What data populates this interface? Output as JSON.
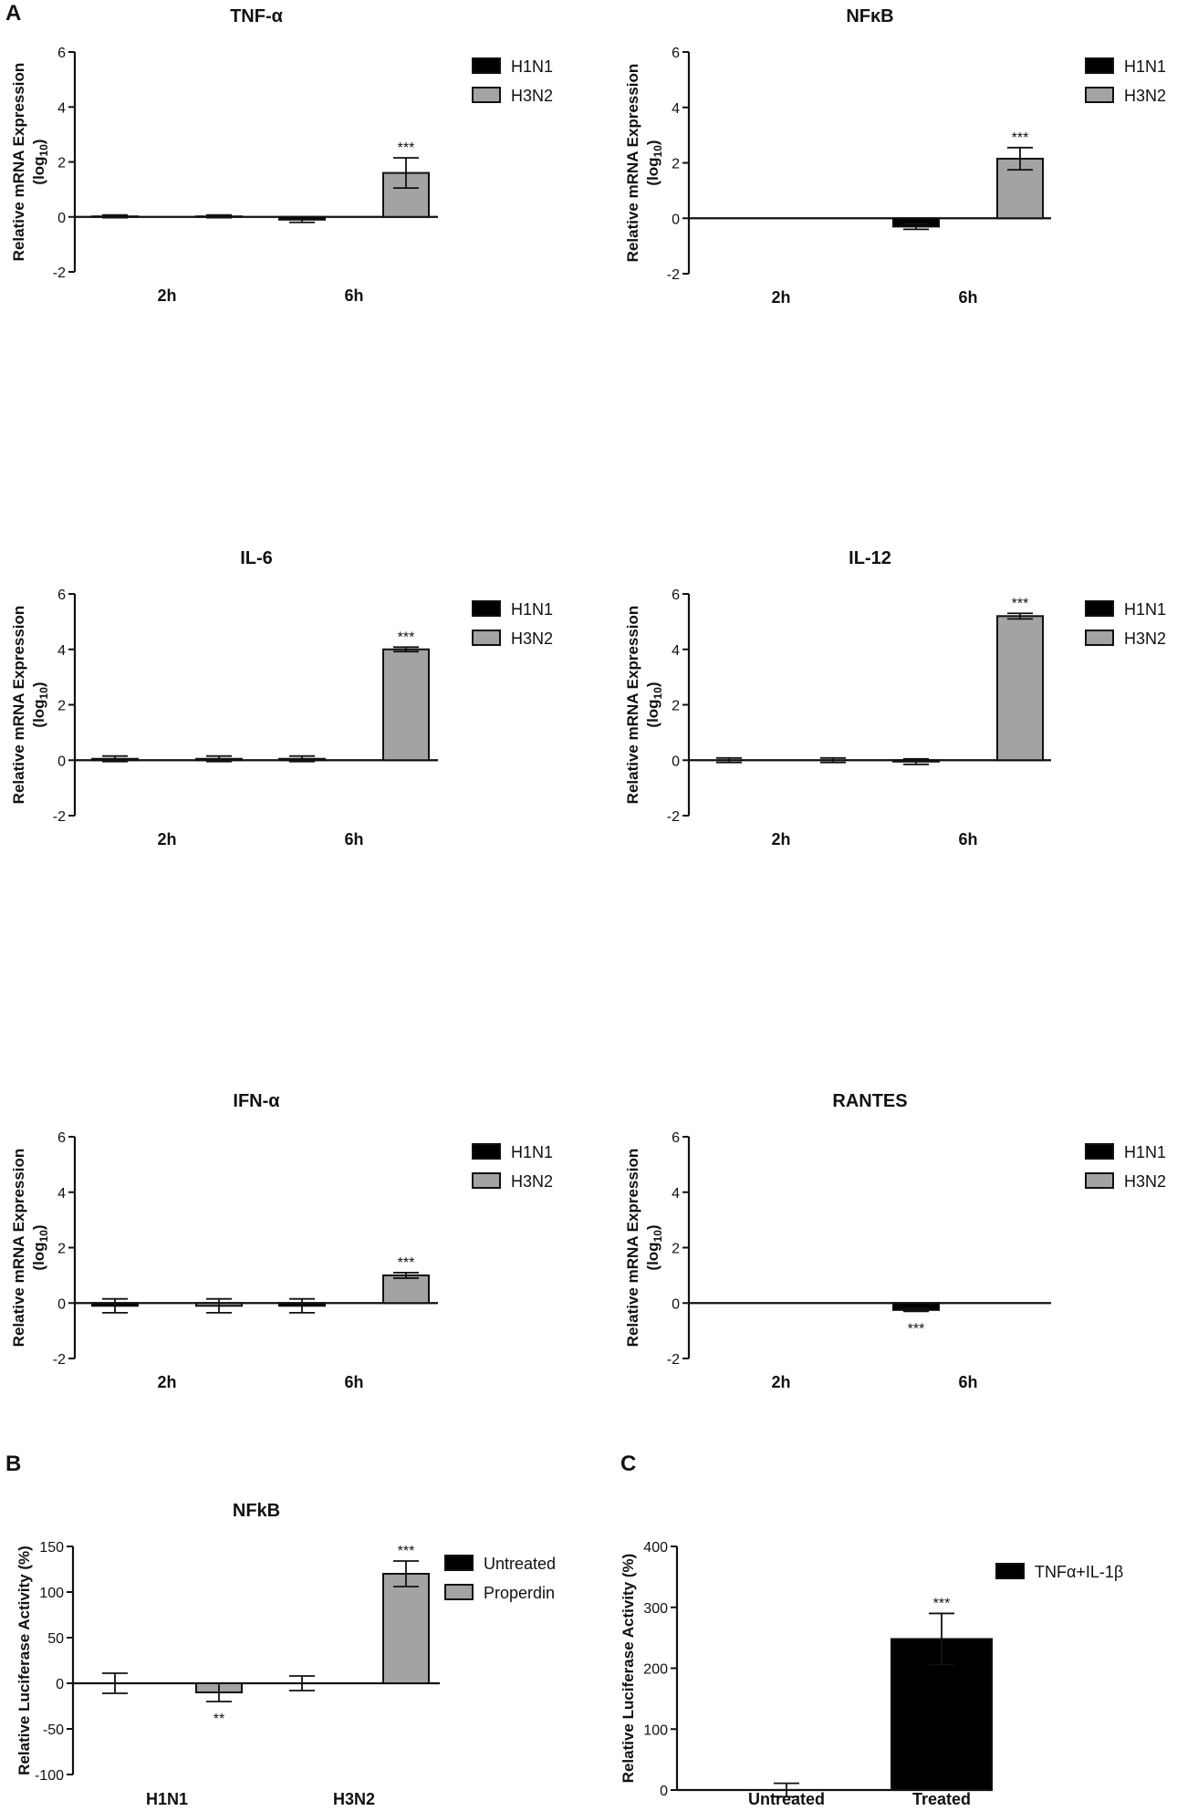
{
  "figure": {
    "panel_labels": [
      "A",
      "B",
      "C"
    ]
  },
  "chart_data": [
    {
      "type": "bar",
      "title": "TNF-α",
      "ylabel": [
        "Relative mRNA Expression",
        "(log",
        "10",
        ")"
      ],
      "ylim": [
        -2,
        6
      ],
      "yticks": [
        -2,
        0,
        2,
        4,
        6
      ],
      "categories": [
        "2h",
        "6h"
      ],
      "series": [
        {
          "name": "H1N1",
          "color": "#000000",
          "values": [
            0.02,
            -0.1
          ],
          "errors": [
            0.05,
            0.1
          ]
        },
        {
          "name": "H3N2",
          "color": "#a3a3a3",
          "values": [
            0.02,
            1.6
          ],
          "errors": [
            0.05,
            0.55
          ]
        }
      ],
      "annotations": [
        {
          "category": "6h",
          "series": "H3N2",
          "text": "***"
        }
      ]
    },
    {
      "type": "bar",
      "title": "NFκB",
      "ylabel": [
        "Relative mRNA Expression",
        "(log",
        "10",
        ")"
      ],
      "ylim": [
        -2,
        6
      ],
      "yticks": [
        -2,
        0,
        2,
        4,
        6
      ],
      "categories": [
        "2h",
        "6h"
      ],
      "series": [
        {
          "name": "H1N1",
          "color": "#000000",
          "values": [
            0,
            -0.3
          ],
          "errors": [
            0,
            0.1
          ]
        },
        {
          "name": "H3N2",
          "color": "#a3a3a3",
          "values": [
            0,
            2.15
          ],
          "errors": [
            0,
            0.4
          ]
        }
      ],
      "annotations": [
        {
          "category": "6h",
          "series": "H3N2",
          "text": "***"
        }
      ]
    },
    {
      "type": "bar",
      "title": "IL-6",
      "ylabel": [
        "Relative mRNA Expression",
        "(log",
        "10",
        ")"
      ],
      "ylim": [
        -2,
        6
      ],
      "yticks": [
        -2,
        0,
        2,
        4,
        6
      ],
      "categories": [
        "2h",
        "6h"
      ],
      "series": [
        {
          "name": "H1N1",
          "color": "#000000",
          "values": [
            0.05,
            0.05
          ],
          "errors": [
            0.1,
            0.1
          ]
        },
        {
          "name": "H3N2",
          "color": "#a3a3a3",
          "values": [
            0.05,
            4.0
          ],
          "errors": [
            0.1,
            0.08
          ]
        }
      ],
      "annotations": [
        {
          "category": "6h",
          "series": "H3N2",
          "text": "***"
        }
      ]
    },
    {
      "type": "bar",
      "title": "IL-12",
      "ylabel": [
        "Relative mRNA Expression",
        "(log",
        "10",
        ")"
      ],
      "ylim": [
        -2,
        6
      ],
      "yticks": [
        -2,
        0,
        2,
        4,
        6
      ],
      "categories": [
        "2h",
        "6h"
      ],
      "series": [
        {
          "name": "H1N1",
          "color": "#000000",
          "values": [
            0,
            -0.05
          ],
          "errors": [
            0.08,
            0.1
          ]
        },
        {
          "name": "H3N2",
          "color": "#a3a3a3",
          "values": [
            0,
            5.2
          ],
          "errors": [
            0.08,
            0.1
          ]
        }
      ],
      "annotations": [
        {
          "category": "6h",
          "series": "H3N2",
          "text": "***"
        }
      ]
    },
    {
      "type": "bar",
      "title": "IFN-α",
      "ylabel": [
        "Relative mRNA Expression",
        "(log",
        "10",
        ")"
      ],
      "ylim": [
        -2,
        6
      ],
      "yticks": [
        -2,
        0,
        2,
        4,
        6
      ],
      "categories": [
        "2h",
        "6h"
      ],
      "series": [
        {
          "name": "H1N1",
          "color": "#000000",
          "values": [
            -0.1,
            -0.1
          ],
          "errors": [
            0.25,
            0.25
          ]
        },
        {
          "name": "H3N2",
          "color": "#a3a3a3",
          "values": [
            -0.1,
            1.0
          ],
          "errors": [
            0.25,
            0.1
          ]
        }
      ],
      "annotations": [
        {
          "category": "6h",
          "series": "H3N2",
          "text": "***"
        }
      ]
    },
    {
      "type": "bar",
      "title": "RANTES",
      "ylabel": [
        "Relative mRNA Expression",
        "(log",
        "10",
        ")"
      ],
      "ylim": [
        -2,
        6
      ],
      "yticks": [
        -2,
        0,
        2,
        4,
        6
      ],
      "categories": [
        "2h",
        "6h"
      ],
      "series": [
        {
          "name": "H1N1",
          "color": "#000000",
          "values": [
            0,
            -0.25
          ],
          "errors": [
            0,
            0.05
          ]
        },
        {
          "name": "H3N2",
          "color": "#a3a3a3",
          "values": [
            0,
            0
          ],
          "errors": [
            0,
            0
          ]
        }
      ],
      "annotations": [
        {
          "category": "6h",
          "series": "H1N1",
          "text": "***",
          "position": "below"
        }
      ]
    },
    {
      "type": "bar",
      "title": "NFkB",
      "ylabel": [
        "Relative Luciferase Activity (%)"
      ],
      "ylim": [
        -100,
        150
      ],
      "yticks": [
        -100,
        -50,
        0,
        50,
        100,
        150
      ],
      "categories": [
        "H1N1",
        "H3N2"
      ],
      "series": [
        {
          "name": "Untreated",
          "color": "#000000",
          "values": [
            0,
            0
          ],
          "errors": [
            11,
            8
          ]
        },
        {
          "name": "Properdin",
          "color": "#a3a3a3",
          "values": [
            -10,
            120
          ],
          "errors": [
            10,
            14
          ]
        }
      ],
      "annotations": [
        {
          "category": "H1N1",
          "series": "Properdin",
          "text": "**",
          "position": "below"
        },
        {
          "category": "H3N2",
          "series": "Properdin",
          "text": "***"
        }
      ]
    },
    {
      "type": "bar",
      "title": "",
      "ylabel": [
        "Relative Luciferase Activity (%)"
      ],
      "ylim": [
        0,
        400
      ],
      "yticks": [
        0,
        100,
        200,
        300,
        400
      ],
      "categories": [
        "Untreated",
        "Treated"
      ],
      "series": [
        {
          "name": "TNFα+IL-1β",
          "color": "#000000",
          "values": [
            0,
            248
          ],
          "errors": [
            11,
            42
          ]
        }
      ],
      "annotations": [
        {
          "category": "Treated",
          "series": "TNFα+IL-1β",
          "text": "***"
        }
      ]
    }
  ]
}
